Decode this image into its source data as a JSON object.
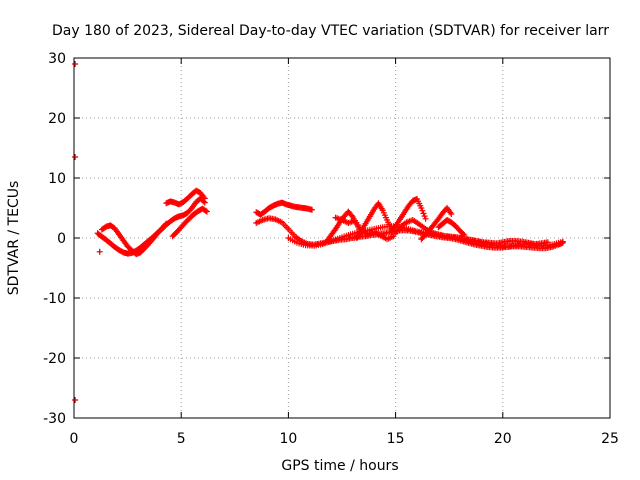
{
  "chart_data": {
    "type": "scatter",
    "title": "Day 180 of 2023, Sidereal Day-to-day VTEC variation (SDTVAR) for receiver larr",
    "xlabel": "GPS time / hours",
    "ylabel": "SDTVAR / TECUs",
    "xlim": [
      0,
      25
    ],
    "ylim": [
      -30,
      30
    ],
    "xticks": [
      "0",
      "5",
      "10",
      "15",
      "20",
      "25"
    ],
    "yticks": [
      "-30",
      "-20",
      "-10",
      "0",
      "10",
      "20",
      "30"
    ],
    "grid": true,
    "marker_color": "#ff0000",
    "outlier_color": "#cc0000",
    "outliers": [
      {
        "x": 0.05,
        "y": 29.0
      },
      {
        "x": 0.05,
        "y": 13.5
      },
      {
        "x": 0.05,
        "y": -27.0
      },
      {
        "x": 1.2,
        "y": -2.3
      }
    ],
    "series": [
      {
        "x": [
          1.1,
          1.3,
          1.5,
          1.7,
          1.9,
          2.1,
          2.3,
          2.5,
          2.7,
          2.9,
          3.1,
          3.3,
          3.5,
          3.7,
          3.9,
          4.1,
          4.3,
          4.5,
          4.7,
          4.9,
          5.1,
          5.3,
          5.5,
          5.7,
          5.9,
          6.1
        ],
        "y": [
          0.8,
          0.2,
          -0.3,
          -0.9,
          -1.5,
          -2.0,
          -2.4,
          -2.6,
          -2.5,
          -2.1,
          -1.6,
          -1.0,
          -0.4,
          0.2,
          0.9,
          1.5,
          2.2,
          2.8,
          3.3,
          3.6,
          3.8,
          4.2,
          5.0,
          6.0,
          6.6,
          5.9
        ]
      },
      {
        "x": [
          1.3,
          1.5,
          1.7,
          1.9,
          2.1,
          2.3,
          2.5,
          2.7,
          2.9,
          3.1,
          3.3,
          3.5,
          3.7,
          3.9,
          4.1,
          4.3
        ],
        "y": [
          1.4,
          1.9,
          2.1,
          1.6,
          0.6,
          -0.4,
          -1.4,
          -2.1,
          -2.7,
          -2.4,
          -1.7,
          -0.9,
          -0.1,
          0.8,
          1.6,
          2.4
        ]
      },
      {
        "x": [
          4.3,
          4.5,
          4.7,
          4.9,
          5.1,
          5.3,
          5.5,
          5.7,
          5.9,
          6.1
        ],
        "y": [
          5.8,
          6.1,
          5.9,
          5.6,
          6.0,
          6.6,
          7.3,
          7.9,
          7.5,
          6.6
        ]
      },
      {
        "x": [
          4.6,
          4.8,
          5.0,
          5.2,
          5.4,
          5.6,
          5.8,
          6.0,
          6.2
        ],
        "y": [
          0.3,
          1.0,
          1.8,
          2.6,
          3.3,
          4.0,
          4.5,
          4.9,
          4.4
        ]
      },
      {
        "x": [
          8.5,
          8.7,
          8.9,
          9.1,
          9.3,
          9.5,
          9.7,
          9.9,
          10.1,
          10.3,
          10.5,
          10.7,
          10.9,
          11.1
        ],
        "y": [
          4.3,
          3.9,
          4.4,
          5.0,
          5.4,
          5.7,
          5.9,
          5.6,
          5.4,
          5.2,
          5.1,
          5.0,
          4.9,
          4.7
        ]
      },
      {
        "x": [
          8.5,
          8.8,
          9.1,
          9.4,
          9.7,
          10.0,
          10.3,
          10.6,
          10.9,
          11.2,
          11.5,
          11.8,
          12.1,
          12.4,
          12.7,
          13.0,
          13.3,
          13.6,
          13.9,
          14.2,
          14.5,
          14.8,
          15.1,
          15.4,
          15.7,
          16.0,
          16.3,
          16.6,
          16.9,
          17.2,
          17.5,
          17.8,
          18.1,
          18.4,
          18.7,
          19.0,
          19.3,
          19.6,
          19.9,
          20.2,
          20.5,
          20.8,
          21.1,
          21.4,
          21.7,
          22.0,
          22.3,
          22.6,
          22.8
        ],
        "y": [
          2.5,
          3.0,
          3.3,
          3.1,
          2.6,
          1.5,
          0.3,
          -0.5,
          -1.0,
          -1.1,
          -0.9,
          -0.7,
          -0.5,
          -0.3,
          -0.2,
          0.0,
          0.2,
          0.3,
          0.5,
          0.6,
          0.8,
          1.0,
          1.2,
          1.3,
          1.2,
          1.0,
          0.7,
          0.5,
          0.3,
          0.1,
          0.0,
          -0.2,
          -0.5,
          -0.8,
          -1.1,
          -1.3,
          -1.5,
          -1.6,
          -1.6,
          -1.5,
          -1.4,
          -1.4,
          -1.5,
          -1.6,
          -1.7,
          -1.7,
          -1.5,
          -1.1,
          -0.8
        ]
      },
      {
        "x": [
          10.0,
          10.4,
          10.8,
          11.2,
          11.6,
          12.0,
          12.4,
          12.8,
          13.2,
          13.6,
          14.0,
          14.4,
          14.8,
          15.2,
          15.6,
          16.0,
          16.4,
          16.8,
          17.2,
          17.6,
          18.0,
          18.4,
          18.8,
          19.2,
          19.6,
          20.0,
          20.4,
          20.8,
          21.2,
          21.6,
          22.0,
          22.4,
          22.8
        ],
        "y": [
          0.0,
          -0.8,
          -1.2,
          -1.3,
          -1.0,
          -0.5,
          0.0,
          0.5,
          0.9,
          1.2,
          1.5,
          1.8,
          2.0,
          1.8,
          1.5,
          1.1,
          0.8,
          0.6,
          0.4,
          0.2,
          0.0,
          -0.3,
          -0.6,
          -0.9,
          -1.2,
          -1.4,
          -1.3,
          -1.1,
          -1.0,
          -1.2,
          -1.3,
          -1.0,
          -0.6
        ]
      },
      {
        "x": [
          12.2,
          12.5,
          12.8,
          13.1,
          13.4,
          13.7,
          14.0,
          14.3,
          14.6,
          14.9,
          15.2,
          15.5,
          15.8,
          16.1,
          16.4,
          16.7,
          17.0,
          17.3,
          17.6,
          17.9,
          18.2,
          18.5,
          18.8,
          19.1,
          19.4,
          19.7,
          20.0,
          20.3,
          20.6,
          20.9,
          21.2,
          21.5,
          21.8,
          22.1
        ],
        "y": [
          3.4,
          3.0,
          2.5,
          2.9,
          1.4,
          0.6,
          1.0,
          0.4,
          -0.2,
          0.3,
          1.8,
          2.6,
          3.0,
          2.3,
          1.5,
          0.9,
          0.6,
          0.3,
          0.2,
          0.1,
          -0.1,
          -0.3,
          -0.5,
          -0.7,
          -0.8,
          -0.9,
          -0.7,
          -0.5,
          -0.5,
          -0.6,
          -0.8,
          -1.0,
          -0.9,
          -0.7
        ]
      },
      {
        "x": [
          11.8,
          12.0,
          12.2,
          12.4,
          12.6,
          12.8,
          13.0,
          13.2,
          13.4
        ],
        "y": [
          -0.5,
          0.5,
          1.5,
          2.6,
          3.6,
          4.4,
          3.5,
          2.2,
          0.8
        ]
      },
      {
        "x": [
          13.2,
          13.4,
          13.6,
          13.8,
          14.0,
          14.2,
          14.4,
          14.6,
          14.8
        ],
        "y": [
          0.0,
          1.2,
          2.4,
          3.6,
          4.8,
          5.8,
          4.6,
          3.0,
          1.5
        ]
      },
      {
        "x": [
          14.8,
          15.0,
          15.2,
          15.4,
          15.6,
          15.8,
          16.0,
          16.2,
          16.4
        ],
        "y": [
          1.0,
          2.0,
          3.1,
          4.2,
          5.3,
          6.2,
          6.5,
          5.0,
          3.2
        ]
      },
      {
        "x": [
          16.2,
          16.4,
          16.6,
          16.8,
          17.0,
          17.2,
          17.4,
          17.6
        ],
        "y": [
          -0.2,
          0.6,
          1.4,
          2.3,
          3.2,
          4.2,
          5.0,
          4.0
        ]
      },
      {
        "x": [
          17.0,
          17.2,
          17.4,
          17.6,
          17.8,
          18.0,
          18.2
        ],
        "y": [
          1.8,
          2.4,
          3.0,
          2.6,
          2.0,
          1.2,
          0.5
        ]
      }
    ]
  }
}
